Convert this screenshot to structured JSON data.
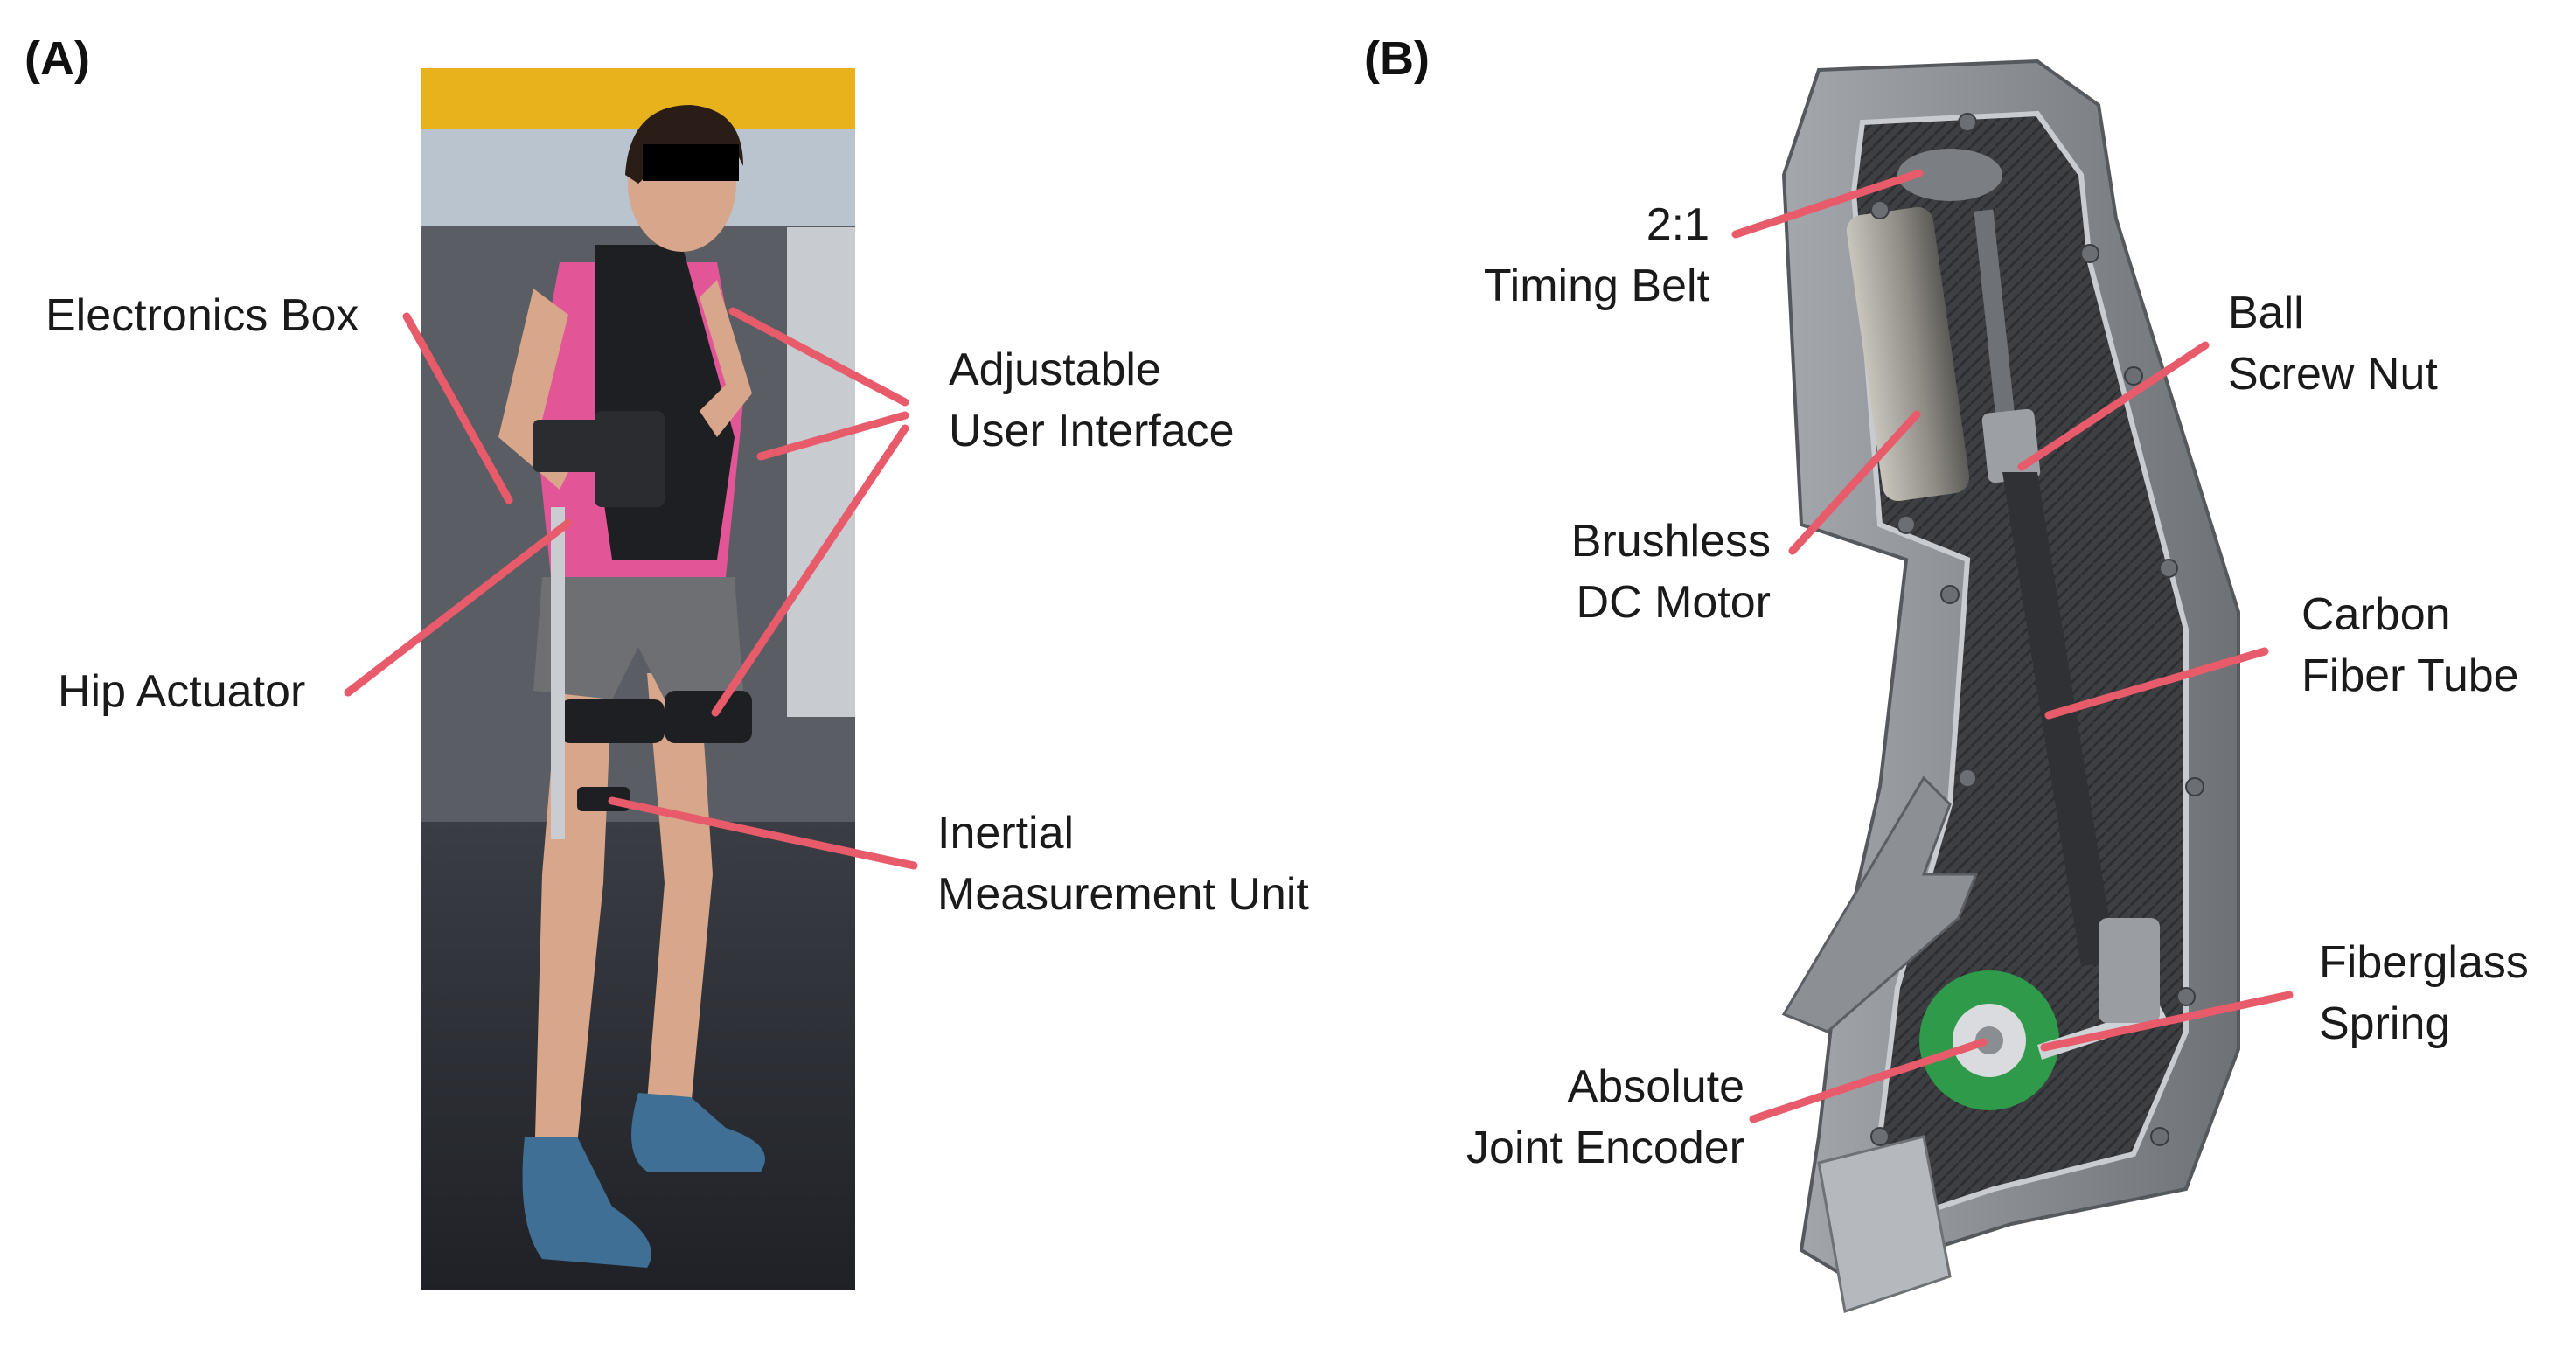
{
  "panels": {
    "a": {
      "label": "(A)"
    },
    "b": {
      "label": "(B)"
    }
  },
  "colors": {
    "leader": "#e75b6a",
    "housing": "#8c8f94",
    "carbon": "#3d3f43",
    "encoder": "#2e9a4a"
  },
  "callouts_a": {
    "electronics_box": "Electronics Box",
    "adjustable_interface": [
      "Adjustable",
      "User Interface"
    ],
    "hip_actuator": "Hip Actuator",
    "imu": [
      "Inertial",
      "Measurement Unit"
    ]
  },
  "callouts_b": {
    "timing_belt": [
      "2:1",
      "Timing Belt"
    ],
    "ball_screw_nut": [
      "Ball",
      "Screw Nut"
    ],
    "bldc_motor": [
      "Brushless",
      "DC Motor"
    ],
    "carbon_tube": [
      "Carbon",
      "Fiber Tube"
    ],
    "fiberglass_spring": [
      "Fiberglass",
      "Spring"
    ],
    "joint_encoder": [
      "Absolute",
      "Joint Encoder"
    ]
  }
}
